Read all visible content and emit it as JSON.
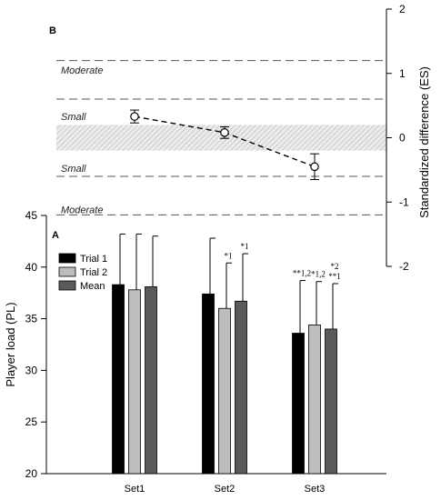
{
  "chart_data": [
    {
      "panel_label": "B",
      "type": "line",
      "ylabel": "Standardized difference (ES)",
      "ylim": [
        -2,
        2
      ],
      "yticks": [
        -2,
        -1,
        0,
        1,
        2
      ],
      "points": [
        {
          "category": "Set1",
          "y": 0.33,
          "err": 0.1
        },
        {
          "category": "Set2",
          "y": 0.08,
          "err": 0.09
        },
        {
          "category": "Set3",
          "y": -0.45,
          "err": 0.2
        }
      ],
      "thresholds": [
        1.2,
        0.6,
        -0.6,
        -1.2
      ],
      "trivial_band": [
        -0.2,
        0.2
      ],
      "zone_labels": [
        {
          "text": "Moderate",
          "y": 1.05
        },
        {
          "text": "Small",
          "y": 0.33
        },
        {
          "text": "Small",
          "y": -0.47
        },
        {
          "text": "Moderate",
          "y": -1.12
        }
      ]
    },
    {
      "panel_label": "A",
      "type": "bar",
      "ylabel": "Player load (PL)",
      "ylim": [
        20,
        45
      ],
      "yticks": [
        20,
        25,
        30,
        35,
        40,
        45
      ],
      "categories": [
        "Set1",
        "Set2",
        "Set3"
      ],
      "legend_position": "top-left",
      "series": [
        {
          "name": "Trial 1",
          "color": "#000000",
          "values": [
            38.3,
            37.4,
            33.6
          ],
          "err": [
            4.9,
            5.4,
            5.1
          ]
        },
        {
          "name": "Trial 2",
          "color": "#bdbdbd",
          "values": [
            37.8,
            36.0,
            34.4
          ],
          "err": [
            5.4,
            4.4,
            4.2
          ]
        },
        {
          "name": "Mean",
          "color": "#5a5a5a",
          "values": [
            38.1,
            36.7,
            34.0
          ],
          "err": [
            4.9,
            4.6,
            4.4
          ]
        }
      ],
      "annotations": [
        {
          "category": "Set2",
          "series": "Trial 2",
          "lines": [
            "*1"
          ]
        },
        {
          "category": "Set2",
          "series": "Mean",
          "lines": [
            "*1"
          ]
        },
        {
          "category": "Set3",
          "series": "Trial 1",
          "lines": [
            "**1,2"
          ]
        },
        {
          "category": "Set3",
          "series": "Trial 2",
          "lines": [
            "*1,2"
          ]
        },
        {
          "category": "Set3",
          "series": "Mean",
          "lines": [
            "*2",
            "**1"
          ]
        }
      ]
    }
  ]
}
